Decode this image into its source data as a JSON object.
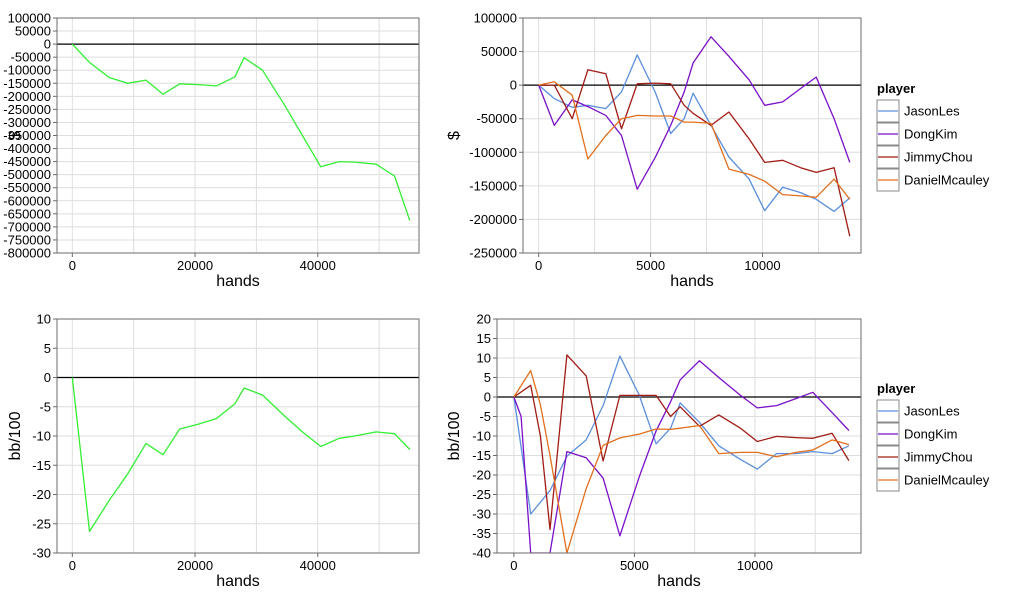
{
  "colors": {
    "grid": "#dedede",
    "frame": "#6b6b6b",
    "zero_line": "#000000",
    "total_series": "#33ee33"
  },
  "player_colors": {
    "JasonLes": "#5b8fdc",
    "DongKim": "#7a10c8",
    "JimmyChou": "#a01c14",
    "DanielMcauley": "#e2701e"
  },
  "legend": {
    "title": "player",
    "entries": [
      "JasonLes",
      "DongKim",
      "JimmyChou",
      "DanielMcauley"
    ]
  },
  "chart_data": [
    {
      "id": "total-dollars",
      "type": "line",
      "xlabel": "hands",
      "ylabel": "$",
      "xlim": [
        -2500,
        56500
      ],
      "ylim": [
        -800000,
        100000
      ],
      "xticks": [
        0,
        20000,
        40000
      ],
      "xtick_labels": [
        "0",
        "20000",
        "40000"
      ],
      "yticks": [
        100000,
        50000,
        0,
        -50000,
        -100000,
        -150000,
        -200000,
        -250000,
        -300000,
        -350000,
        -400000,
        -450000,
        -500000,
        -550000,
        -600000,
        -650000,
        -700000,
        -750000,
        -800000
      ],
      "ytick_labels": [
        "100000",
        "50000",
        "0",
        "-50000",
        "-100000",
        "-150000",
        "-200000",
        "-250000",
        "-300000",
        "-350000",
        "-400000",
        "-450000",
        "-500000",
        "-550000",
        "-600000",
        "-650000",
        "-700000",
        "-750000",
        "-800000"
      ],
      "zero_line": 0,
      "series": [
        {
          "color_key": "total",
          "x": [
            0,
            2800,
            6000,
            9000,
            12000,
            14800,
            17500,
            20500,
            23500,
            26500,
            28000,
            31000,
            34500,
            37500,
            40500,
            43500,
            46000,
            49500,
            52500,
            55000
          ],
          "y": [
            0,
            -70000,
            -128000,
            -150000,
            -138000,
            -192000,
            -152000,
            -155000,
            -160000,
            -125000,
            -52000,
            -100000,
            -230000,
            -350000,
            -470000,
            -450000,
            -452000,
            -460000,
            -505000,
            -675000
          ]
        }
      ]
    },
    {
      "id": "players-dollars",
      "type": "line",
      "xlabel": "hands",
      "ylabel": "$",
      "xlim": [
        -700,
        14400
      ],
      "ylim": [
        -250000,
        100000
      ],
      "xticks": [
        0,
        5000,
        10000
      ],
      "xtick_labels": [
        "0",
        "5000",
        "10000"
      ],
      "yticks": [
        100000,
        50000,
        0,
        -50000,
        -100000,
        -150000,
        -200000,
        -250000
      ],
      "ytick_labels": [
        "100000",
        "50000",
        "0",
        "-50000",
        "-100000",
        "-150000",
        "-200000",
        "-250000"
      ],
      "zero_line": 0,
      "series": [
        {
          "name": "JasonLes",
          "x": [
            0,
            700,
            1500,
            2200,
            3000,
            3700,
            4400,
            5200,
            5900,
            6500,
            6900,
            7700,
            8500,
            9400,
            10100,
            10900,
            11700,
            12400,
            13200,
            13900
          ],
          "y": [
            0,
            -20000,
            -33000,
            -30000,
            -35000,
            -10000,
            45000,
            -10000,
            -72000,
            -50000,
            -12000,
            -60000,
            -107000,
            -140000,
            -187000,
            -152000,
            -160000,
            -170000,
            -188000,
            -168000
          ]
        },
        {
          "name": "DongKim",
          "x": [
            0,
            700,
            1500,
            2200,
            3000,
            3700,
            4400,
            5200,
            5900,
            6500,
            6900,
            7700,
            8500,
            9400,
            10100,
            10900,
            11700,
            12400,
            13200,
            13900
          ],
          "y": [
            0,
            -60000,
            -22000,
            -32000,
            -45000,
            -75000,
            -155000,
            -108000,
            -60000,
            -10000,
            33000,
            72000,
            43000,
            8000,
            -30000,
            -25000,
            -5000,
            12000,
            -50000,
            -115000
          ]
        },
        {
          "name": "JimmyChou",
          "x": [
            0,
            700,
            1500,
            2200,
            3000,
            3700,
            4400,
            5200,
            5900,
            6500,
            6900,
            7700,
            8500,
            9400,
            10100,
            10900,
            11700,
            12400,
            13200,
            13900
          ],
          "y": [
            0,
            0,
            -50000,
            23000,
            17000,
            -65000,
            2000,
            3000,
            2000,
            -30000,
            -42000,
            -60000,
            -40000,
            -80000,
            -115000,
            -112000,
            -123000,
            -130000,
            -123000,
            -225000
          ]
        },
        {
          "name": "DanielMcauley",
          "x": [
            0,
            700,
            1500,
            2200,
            3000,
            3700,
            4400,
            5200,
            5900,
            6500,
            6900,
            7700,
            8500,
            9400,
            10100,
            10900,
            11700,
            12400,
            13200,
            13900
          ],
          "y": [
            0,
            5000,
            -15000,
            -110000,
            -75000,
            -50000,
            -45000,
            -46000,
            -46000,
            -55000,
            -55000,
            -57000,
            -125000,
            -133000,
            -143000,
            -163000,
            -165000,
            -167000,
            -140000,
            -170000
          ]
        }
      ]
    },
    {
      "id": "total-bb100",
      "type": "line",
      "xlabel": "hands",
      "ylabel": "bb/100",
      "xlim": [
        -2500,
        56500
      ],
      "ylim": [
        -30,
        10
      ],
      "xticks": [
        0,
        20000,
        40000
      ],
      "xtick_labels": [
        "0",
        "20000",
        "40000"
      ],
      "yticks": [
        10,
        5,
        0,
        -5,
        -10,
        -15,
        -20,
        -25,
        -30
      ],
      "ytick_labels": [
        "10",
        "5",
        "0",
        "-5",
        "-10",
        "-15",
        "-20",
        "-25",
        "-30"
      ],
      "zero_line": 0,
      "series": [
        {
          "color_key": "total",
          "x": [
            0,
            2800,
            6000,
            9000,
            12000,
            14800,
            17500,
            20500,
            23500,
            26500,
            28000,
            31000,
            34500,
            37500,
            40500,
            43500,
            46000,
            49500,
            52500,
            55000
          ],
          "y": [
            0,
            -26.3,
            -21,
            -16.5,
            -11.3,
            -13.2,
            -8.8,
            -8,
            -7,
            -4.5,
            -1.8,
            -3,
            -6.5,
            -9.3,
            -11.8,
            -10.4,
            -10,
            -9.3,
            -9.6,
            -12.3
          ]
        }
      ]
    },
    {
      "id": "players-bb100",
      "type": "line",
      "xlabel": "hands",
      "ylabel": "bb/100",
      "xlim": [
        -700,
        14400
      ],
      "ylim": [
        -40,
        20
      ],
      "xticks": [
        0,
        5000,
        10000
      ],
      "xtick_labels": [
        "0",
        "5000",
        "10000"
      ],
      "yticks": [
        20,
        15,
        10,
        5,
        0,
        -5,
        -10,
        -15,
        -20,
        -25,
        -30,
        -35,
        -40
      ],
      "ytick_labels": [
        "20",
        "15",
        "10",
        "5",
        "0",
        "-5",
        "-10",
        "-15",
        "-20",
        "-25",
        "-30",
        "-35",
        "-40"
      ],
      "zero_line": 0,
      "series": [
        {
          "name": "JasonLes",
          "x": [
            0,
            700,
            1500,
            2200,
            3000,
            3700,
            4400,
            5200,
            5900,
            6500,
            6900,
            7700,
            8500,
            9400,
            10100,
            10900,
            11700,
            12400,
            13200,
            13900
          ],
          "y": [
            0,
            -30,
            -24,
            -15.2,
            -11,
            -2.2,
            10.5,
            0.5,
            -12,
            -8,
            -1.5,
            -6.5,
            -12.5,
            -16,
            -18.5,
            -14.5,
            -14.5,
            -14,
            -14.5,
            -12.5
          ]
        },
        {
          "name": "DongKim",
          "x": [
            0,
            300,
            700,
            1500,
            2200,
            3000,
            3700,
            4400,
            5200,
            5900,
            6500,
            6900,
            7700,
            8500,
            9400,
            10100,
            10900,
            11700,
            12400,
            13200,
            13900
          ],
          "y": [
            0,
            -5,
            -40,
            -40,
            -14,
            -15.6,
            -20.8,
            -35.6,
            -20.5,
            -8.7,
            -1.2,
            4.4,
            9.3,
            5,
            0.4,
            -2.8,
            -2.2,
            -0.4,
            1.2,
            -4,
            -8.6
          ]
        },
        {
          "name": "JimmyChou",
          "x": [
            0,
            700,
            1100,
            1500,
            2200,
            3000,
            3700,
            4400,
            5200,
            5900,
            6500,
            6900,
            7700,
            8500,
            9400,
            10100,
            10900,
            11700,
            12400,
            13200,
            13900
          ],
          "y": [
            0,
            3,
            -10,
            -34,
            10.8,
            5.4,
            -16.4,
            0.4,
            0.4,
            0.4,
            -5,
            -2.5,
            -7.5,
            -4.6,
            -8,
            -11.4,
            -10.1,
            -10.4,
            -10.6,
            -9.3,
            -16.3
          ]
        },
        {
          "name": "DanielMcauley",
          "x": [
            0,
            700,
            1100,
            1500,
            2200,
            3000,
            3700,
            4400,
            5200,
            5900,
            6500,
            6900,
            7700,
            8500,
            9400,
            10100,
            10900,
            11700,
            12400,
            13200,
            13900
          ],
          "y": [
            0,
            6.8,
            -2,
            -15,
            -40,
            -23.5,
            -12.4,
            -10.5,
            -9.5,
            -8.2,
            -8.3,
            -8,
            -7.3,
            -14.5,
            -14.2,
            -14.2,
            -15.3,
            -14.2,
            -13.6,
            -11,
            -12.2
          ]
        }
      ]
    }
  ]
}
